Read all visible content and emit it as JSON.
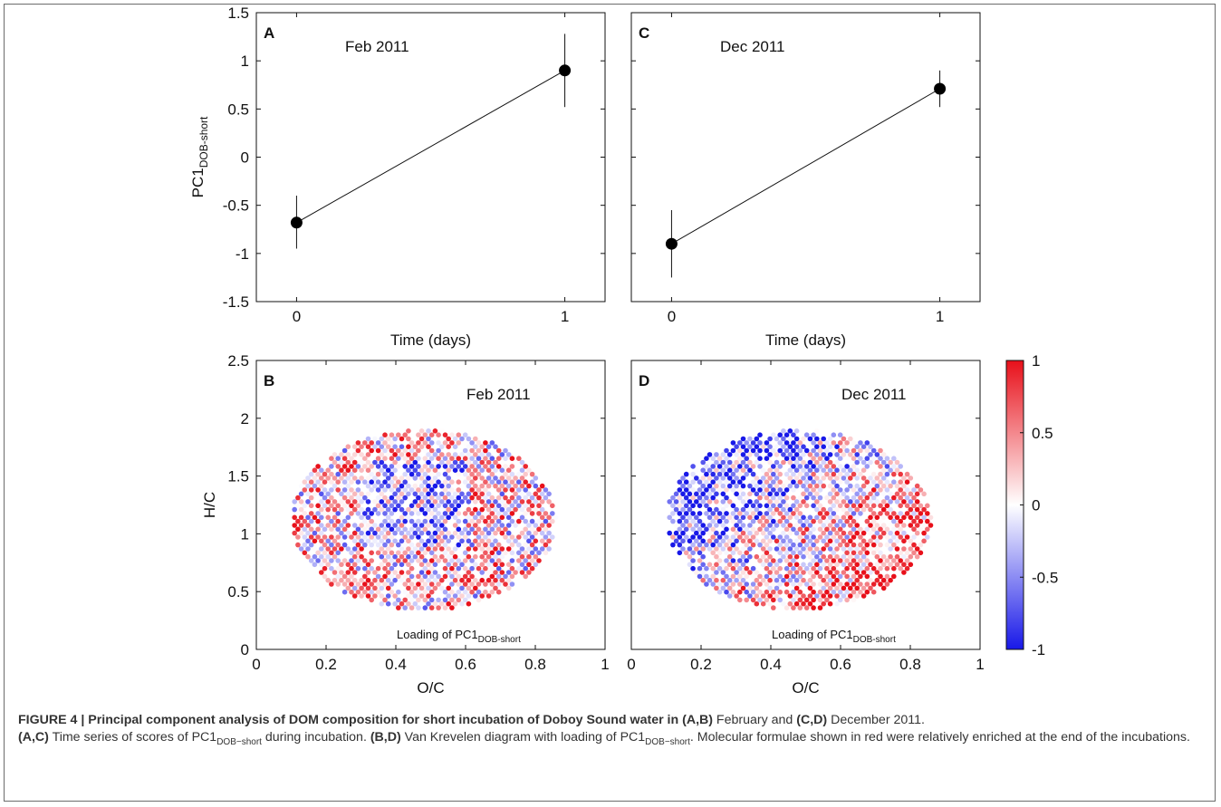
{
  "chart_data": [
    {
      "type": "line",
      "panel": "A",
      "annotation": "Feb 2011",
      "xlabel": "Time (days)",
      "ylabel": "PC1",
      "ylabel_sub": "DOB-short",
      "xlim": [
        -0.15,
        1.15
      ],
      "ylim": [
        -1.5,
        1.5
      ],
      "xticks": [
        "0",
        "1"
      ],
      "yticks": [
        "-1.5",
        "-1",
        "-0.5",
        "0",
        "0.5",
        "1",
        "1.5"
      ],
      "x": [
        0,
        1
      ],
      "y": [
        -0.68,
        0.9
      ],
      "err_low": [
        -0.95,
        0.52
      ],
      "err_high": [
        -0.4,
        1.28
      ]
    },
    {
      "type": "line",
      "panel": "C",
      "annotation": "Dec 2011",
      "xlabel": "Time (days)",
      "xlim": [
        -0.15,
        1.15
      ],
      "ylim": [
        -1.5,
        1.5
      ],
      "xticks": [
        "0",
        "1"
      ],
      "x": [
        0,
        1
      ],
      "y": [
        -0.9,
        0.71
      ],
      "err_low": [
        -1.25,
        0.52
      ],
      "err_high": [
        -0.55,
        0.9
      ]
    },
    {
      "type": "scatter",
      "panel": "B",
      "annotation": "Feb 2011",
      "note": "Loading of PC1",
      "note_sub": "DOB-short",
      "xlabel": "O/C",
      "ylabel": "H/C",
      "xlim": [
        0,
        1
      ],
      "ylim": [
        0,
        2.5
      ],
      "xticks": [
        "0",
        "0.2",
        "0.4",
        "0.6",
        "0.8",
        "1"
      ],
      "yticks": [
        "0",
        "0.5",
        "1",
        "1.5",
        "2",
        "2.5"
      ],
      "points_description": "Van Krevelen cloud of molecular formulae, O/C 0.1–0.85, H/C 0.35–1.9, colored by loading; blue cluster near O/C 0.3–0.6, H/C 1.1–1.6"
    },
    {
      "type": "scatter",
      "panel": "D",
      "annotation": "Dec 2011",
      "note": "Loading of PC1",
      "note_sub": "DOB-short",
      "xlabel": "O/C",
      "xlim": [
        0,
        1
      ],
      "ylim": [
        0,
        2.5
      ],
      "xticks": [
        "0",
        "0.2",
        "0.4",
        "0.6",
        "0.8",
        "1"
      ],
      "points_description": "Same cloud; blue concentrated at low O/C & high H/C, red at high O/C (0.6–0.85)"
    }
  ],
  "colorbar": {
    "ticks": [
      "1",
      "0.5",
      "0",
      "-0.5",
      "-1"
    ],
    "range": [
      -1,
      1
    ],
    "colors": {
      "high": "#e8101a",
      "mid": "#ffffff",
      "low": "#1818e8"
    }
  },
  "caption": {
    "label": "FIGURE 4 | Principal component analysis of DOM composition for short incubation of Doboy Sound water in (A,B)",
    "t1": " February and ",
    "b2": "(C,D)",
    "t2": " December 2011.",
    "b3": "(A,C)",
    "t3": " Time series of scores of PC1",
    "sub1": "DOB−short",
    "t4": " during incubation. ",
    "b4": "(B,D)",
    "t5": " Van Krevelen diagram with loading of PC1",
    "sub2": "DOB−short",
    "t6": ". Molecular formulae shown in red were relatively enriched at the end of the incubations."
  }
}
